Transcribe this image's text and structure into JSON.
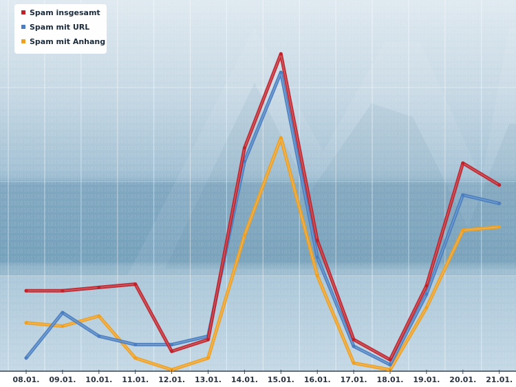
{
  "chart_data": {
    "type": "line",
    "title": "",
    "xlabel": "",
    "ylabel": "",
    "categories": [
      "08.01.",
      "09.01.",
      "10.01.",
      "11.01.",
      "12.01.",
      "13.01.",
      "14.01.",
      "15.01.",
      "16.01.",
      "17.01.",
      "18.01.",
      "19.01.",
      "20.01.",
      "21.01."
    ],
    "ylim": [
      0,
      100
    ],
    "grid": "on",
    "legend_position": "top-left",
    "series": [
      {
        "name": "Spam insgesamt",
        "color": "#c0222a",
        "values": [
          23.5,
          23.5,
          24.5,
          25.5,
          5.5,
          9,
          66,
          94,
          38.5,
          9,
          3,
          25,
          61.5,
          55
        ]
      },
      {
        "name": "Spam mit URL",
        "color": "#4a7ec0",
        "values": [
          3.5,
          17,
          10,
          7.5,
          7.5,
          10,
          62,
          88.5,
          33.5,
          7,
          1.5,
          22.5,
          52,
          49.5
        ]
      },
      {
        "name": "Spam mit Anhang",
        "color": "#f0a020",
        "values": [
          14,
          13,
          16,
          3.5,
          0,
          3.5,
          40,
          69,
          28,
          2,
          0,
          18.5,
          41.5,
          42.5
        ]
      }
    ]
  }
}
